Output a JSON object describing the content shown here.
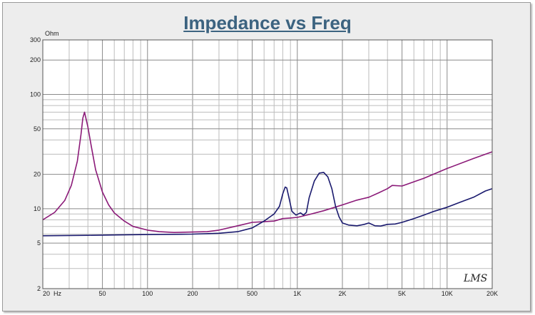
{
  "chart_data": {
    "type": "line",
    "title": "Impedance vs Freq",
    "ylabel": "Ohm",
    "xlabel": "",
    "x_scale": "log",
    "y_scale": "log",
    "xlim": [
      20,
      20000
    ],
    "ylim": [
      2,
      300
    ],
    "x_ticks": [
      {
        "v": 20,
        "label": "20  Hz"
      },
      {
        "v": 50,
        "label": "50"
      },
      {
        "v": 100,
        "label": "100"
      },
      {
        "v": 200,
        "label": "200"
      },
      {
        "v": 500,
        "label": "500"
      },
      {
        "v": 1000,
        "label": "1K"
      },
      {
        "v": 2000,
        "label": "2K"
      },
      {
        "v": 5000,
        "label": "5K"
      },
      {
        "v": 10000,
        "label": "10K"
      },
      {
        "v": 20000,
        "label": "20K"
      }
    ],
    "y_ticks": [
      {
        "v": 2,
        "label": "2"
      },
      {
        "v": 5,
        "label": "5"
      },
      {
        "v": 10,
        "label": "10"
      },
      {
        "v": 20,
        "label": "20"
      },
      {
        "v": 50,
        "label": "50"
      },
      {
        "v": 100,
        "label": "100"
      },
      {
        "v": 200,
        "label": "200"
      },
      {
        "v": 300,
        "label": "300"
      }
    ],
    "grid": true,
    "legend": "none",
    "annotation": "LMS",
    "series": [
      {
        "color": "#8b1a78",
        "x": [
          20,
          24,
          28,
          31,
          34,
          36,
          37,
          38,
          40,
          42,
          45,
          50,
          55,
          60,
          70,
          80,
          100,
          120,
          150,
          200,
          250,
          300,
          400,
          500,
          600,
          700,
          800,
          900,
          1000,
          1200,
          1500,
          2000,
          2500,
          3000,
          3500,
          4000,
          4300,
          5000,
          7000,
          10000,
          15000,
          20000
        ],
        "values": [
          8,
          9.3,
          11.8,
          16,
          26,
          45,
          62,
          70,
          52,
          36,
          22,
          14,
          10.8,
          9.2,
          7.8,
          7,
          6.5,
          6.3,
          6.2,
          6.25,
          6.3,
          6.5,
          7.1,
          7.6,
          7.7,
          7.8,
          8.2,
          8.3,
          8.4,
          8.9,
          9.6,
          10.8,
          11.9,
          12.6,
          13.8,
          15,
          16,
          15.8,
          18.5,
          22.5,
          27.5,
          31.5
        ]
      },
      {
        "color": "#1a1a6e",
        "x": [
          20,
          40,
          60,
          100,
          200,
          300,
          400,
          500,
          600,
          700,
          760,
          800,
          830,
          850,
          880,
          920,
          980,
          1050,
          1100,
          1150,
          1200,
          1300,
          1400,
          1500,
          1600,
          1700,
          1800,
          1900,
          2000,
          2200,
          2500,
          2800,
          3000,
          3300,
          3600,
          4000,
          4500,
          5000,
          6000,
          7000,
          8000,
          10000,
          12000,
          15000,
          18000,
          20000
        ],
        "values": [
          5.8,
          5.85,
          5.9,
          5.95,
          6.0,
          6.1,
          6.3,
          6.8,
          7.8,
          9,
          10.5,
          13.5,
          15.5,
          15.2,
          12.5,
          9.5,
          8.8,
          9.2,
          8.8,
          9.3,
          12.5,
          17.5,
          20.5,
          20.8,
          19,
          15,
          10.5,
          8.5,
          7.5,
          7.2,
          7.1,
          7.3,
          7.5,
          7.1,
          7.05,
          7.3,
          7.35,
          7.6,
          8.2,
          8.8,
          9.4,
          10.3,
          11.3,
          12.6,
          14.3,
          15
        ]
      }
    ]
  }
}
